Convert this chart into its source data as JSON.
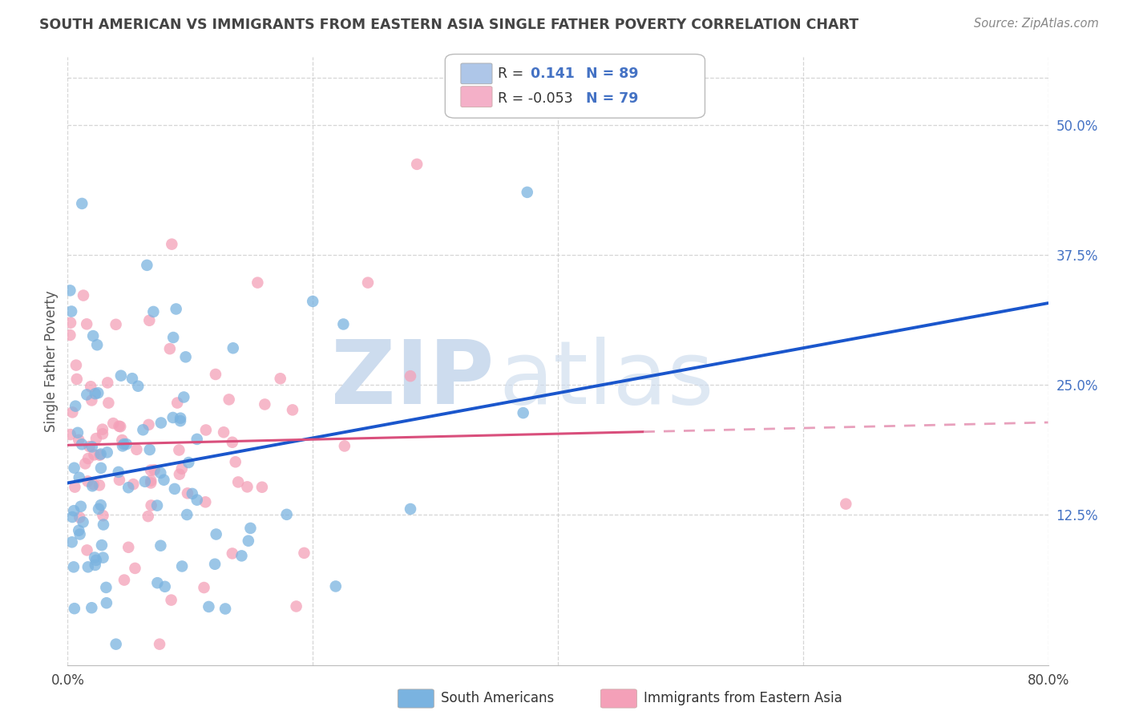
{
  "title": "SOUTH AMERICAN VS IMMIGRANTS FROM EASTERN ASIA SINGLE FATHER POVERTY CORRELATION CHART",
  "source": "Source: ZipAtlas.com",
  "ylabel": "Single Father Poverty",
  "yticks": [
    "50.0%",
    "37.5%",
    "25.0%",
    "12.5%"
  ],
  "ytick_vals": [
    0.5,
    0.375,
    0.25,
    0.125
  ],
  "xlim": [
    0.0,
    0.8
  ],
  "ylim": [
    -0.02,
    0.565
  ],
  "series1_label": "South Americans",
  "series2_label": "Immigrants from Eastern Asia",
  "series1_color": "#7ab3e0",
  "series2_color": "#f4a0b8",
  "series1_R": 0.141,
  "series1_N": 89,
  "series2_R": -0.053,
  "series2_N": 79,
  "trend1_color": "#1a56cc",
  "trend2_color_solid": "#d94f7c",
  "trend2_color_dash": "#e8a0bc",
  "background_color": "#ffffff",
  "grid_color": "#cccccc",
  "title_color": "#444444",
  "axis_label_color": "#555555",
  "right_tick_color": "#4472c4",
  "legend_box_color": "#aec6e8",
  "legend_pink_color": "#f4b0c8",
  "seed": 12
}
